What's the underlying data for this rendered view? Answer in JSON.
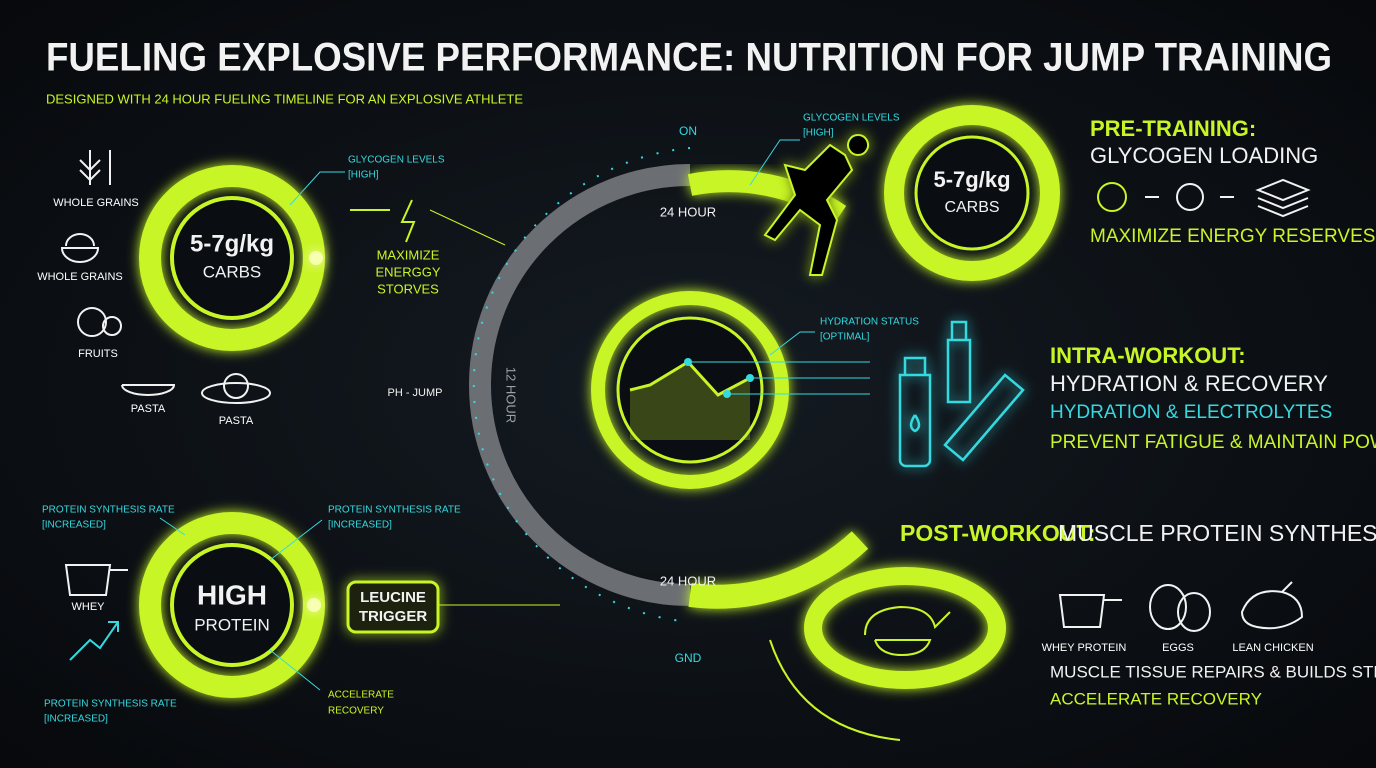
{
  "header": {
    "title": "FUELING EXPLOSIVE PERFORMANCE: NUTRITION FOR JUMP TRAINING",
    "subtitle": "DESIGNED WITH 24 HOUR FUELING TIMELINE FOR AN EXPLOSIVE ATHLETE"
  },
  "carb_panel": {
    "foods": [
      "WHOLE GRAINS",
      "WHOLE GRAINS",
      "FRUITS",
      "PASTA",
      "PASTA"
    ],
    "ring": {
      "value": "5-7g/kg",
      "label": "CARBS"
    },
    "callout": [
      "GLYCOGEN LEVELS",
      "[HIGH]"
    ],
    "note": [
      "MAXIMIZE",
      "ENERGGY",
      "STORVES"
    ]
  },
  "timeline": {
    "top": "ON",
    "upper": "24 HOUR",
    "middle": "12 HOUR",
    "side": "PH - JUMP",
    "lower": "24 HOUR",
    "bottom": "GND"
  },
  "pre_training": {
    "ring": {
      "value": "5-7g/kg",
      "label": "CARBS"
    },
    "callout": [
      "GLYCOGEN LEVELS",
      "[HIGH]"
    ],
    "heading": "PRE-TRAINING:",
    "title": "GLYCOGEN LOADING",
    "note": "MAXIMIZE ENERGY RESERVES"
  },
  "intra_workout": {
    "callout": [
      "HYDRATION STATUS",
      "[OPTIMAL]"
    ],
    "heading": "INTRA-WORKOUT:",
    "title": "HYDRATION & RECOVERY",
    "line1": "HYDRATION & ELECTROLYTES",
    "line2": "PREVENT FATIGUE & MAINTAIN POWER"
  },
  "protein_panel": {
    "ring": {
      "value": "HIGH",
      "label": "PROTEIN"
    },
    "callouts": [
      [
        "PROTEIN SYNTHESIS RATE",
        "[INCREASED]"
      ],
      [
        "PROTEIN SYNTHESIS RATE",
        "[INCREASED]"
      ],
      [
        "PROTEIN SYNTHESIS RATE",
        "[INCREASED]"
      ]
    ],
    "food": "WHEY",
    "trigger": [
      "LEUCINE",
      "TRIGGER"
    ],
    "note": [
      "ACCELERATE",
      "RECOVERY"
    ]
  },
  "post_workout": {
    "heading": "POST-WORKOUT:",
    "title": "MUSCLE PROTEIN SYNTHESIS",
    "foods": [
      "WHEY PROTEIN",
      "EGGS",
      "LEAN CHICKEN"
    ],
    "line1": "MUSCLE TISSUE REPAIRS & BUILDS STRONGER",
    "line2": "ACCELERATE RECOVERY"
  }
}
